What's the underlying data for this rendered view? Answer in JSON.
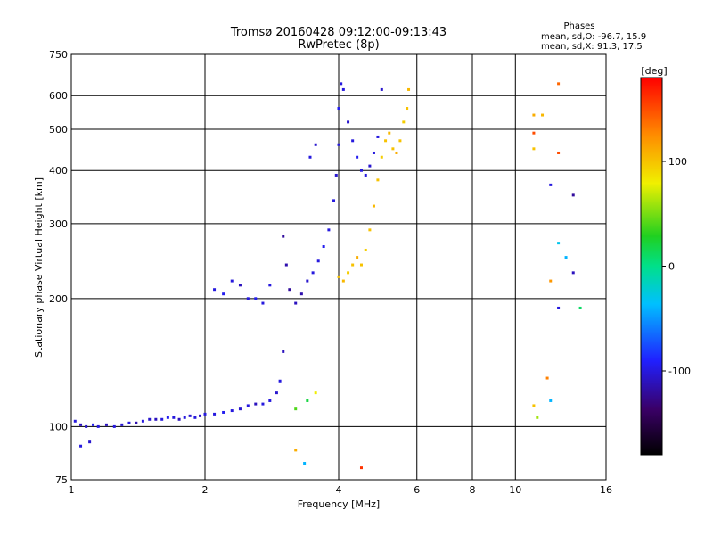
{
  "chart_data": {
    "type": "scatter",
    "title": "Tromsø 20160428 09:12:00-09:13:43",
    "subtitle": "RwPretec (8p)",
    "phase_box": {
      "heading": "Phases",
      "line_o": "mean, sd,O: -96.7, 15.9",
      "line_x": "mean, sd,X:  91.3, 17.5"
    },
    "xlabel": "Frequency [MHz]",
    "ylabel": "Stationary phase Virtual Height [km]",
    "x_scale": "log",
    "y_scale": "log",
    "xlim": [
      1,
      16
    ],
    "ylim": [
      75,
      750
    ],
    "x_ticks": [
      1,
      2,
      4,
      6,
      8,
      10,
      16
    ],
    "x_tick_labels": [
      "1",
      "2",
      "4",
      "6",
      "8",
      "10",
      "16"
    ],
    "y_ticks": [
      75,
      100,
      200,
      300,
      400,
      500,
      600,
      750
    ],
    "y_tick_labels": [
      "75",
      "100",
      "200",
      "300",
      "400",
      "500",
      "600",
      "750"
    ],
    "grid": true,
    "colorbar": {
      "label": "[deg]",
      "range": [
        -180,
        180
      ],
      "ticks": [
        100,
        0,
        -100
      ],
      "tick_labels": [
        "100",
        "0",
        "-100"
      ]
    },
    "series": [
      {
        "role": "low-trace",
        "points": [
          {
            "x": 1.02,
            "y": 103,
            "c": -100
          },
          {
            "x": 1.05,
            "y": 101,
            "c": -110
          },
          {
            "x": 1.08,
            "y": 100,
            "c": -105
          },
          {
            "x": 1.12,
            "y": 101,
            "c": -95
          },
          {
            "x": 1.15,
            "y": 100,
            "c": -100
          },
          {
            "x": 1.2,
            "y": 101,
            "c": -110
          },
          {
            "x": 1.25,
            "y": 100,
            "c": -100
          },
          {
            "x": 1.3,
            "y": 101,
            "c": -105
          },
          {
            "x": 1.35,
            "y": 102,
            "c": -100
          },
          {
            "x": 1.4,
            "y": 102,
            "c": -115
          },
          {
            "x": 1.45,
            "y": 103,
            "c": -100
          },
          {
            "x": 1.5,
            "y": 104,
            "c": -105
          },
          {
            "x": 1.55,
            "y": 104,
            "c": -110
          },
          {
            "x": 1.6,
            "y": 104,
            "c": -100
          },
          {
            "x": 1.65,
            "y": 105,
            "c": -95
          },
          {
            "x": 1.7,
            "y": 105,
            "c": -100
          },
          {
            "x": 1.75,
            "y": 104,
            "c": -110
          },
          {
            "x": 1.8,
            "y": 105,
            "c": -100
          },
          {
            "x": 1.85,
            "y": 106,
            "c": -105
          },
          {
            "x": 1.9,
            "y": 105,
            "c": -100
          },
          {
            "x": 1.95,
            "y": 106,
            "c": -110
          },
          {
            "x": 2.0,
            "y": 107,
            "c": -100
          },
          {
            "x": 2.1,
            "y": 107,
            "c": -100
          },
          {
            "x": 2.2,
            "y": 108,
            "c": -95
          },
          {
            "x": 2.3,
            "y": 109,
            "c": -100
          },
          {
            "x": 2.4,
            "y": 110,
            "c": -105
          },
          {
            "x": 2.5,
            "y": 112,
            "c": -100
          },
          {
            "x": 2.6,
            "y": 113,
            "c": -110
          },
          {
            "x": 2.7,
            "y": 113,
            "c": -100
          },
          {
            "x": 2.8,
            "y": 115,
            "c": -100
          },
          {
            "x": 2.9,
            "y": 120,
            "c": -105
          },
          {
            "x": 2.95,
            "y": 128,
            "c": -100
          },
          {
            "x": 3.0,
            "y": 150,
            "c": -110
          }
        ]
      },
      {
        "role": "o-trace",
        "points": [
          {
            "x": 2.1,
            "y": 210,
            "c": -100
          },
          {
            "x": 2.2,
            "y": 205,
            "c": -95
          },
          {
            "x": 2.3,
            "y": 220,
            "c": -100
          },
          {
            "x": 2.4,
            "y": 215,
            "c": -110
          },
          {
            "x": 2.5,
            "y": 200,
            "c": -100
          },
          {
            "x": 2.6,
            "y": 200,
            "c": -95
          },
          {
            "x": 2.7,
            "y": 195,
            "c": -100
          },
          {
            "x": 2.8,
            "y": 215,
            "c": -100
          },
          {
            "x": 3.0,
            "y": 280,
            "c": -120
          },
          {
            "x": 3.05,
            "y": 240,
            "c": -115
          },
          {
            "x": 3.1,
            "y": 210,
            "c": -120
          },
          {
            "x": 3.2,
            "y": 195,
            "c": -110
          },
          {
            "x": 3.3,
            "y": 205,
            "c": -115
          },
          {
            "x": 3.4,
            "y": 220,
            "c": -105
          },
          {
            "x": 3.5,
            "y": 230,
            "c": -100
          },
          {
            "x": 3.6,
            "y": 245,
            "c": -100
          },
          {
            "x": 3.7,
            "y": 265,
            "c": -95
          },
          {
            "x": 3.8,
            "y": 290,
            "c": -100
          },
          {
            "x": 3.9,
            "y": 340,
            "c": -100
          },
          {
            "x": 3.95,
            "y": 390,
            "c": -105
          },
          {
            "x": 4.0,
            "y": 460,
            "c": -100
          },
          {
            "x": 4.0,
            "y": 560,
            "c": -95
          },
          {
            "x": 4.05,
            "y": 640,
            "c": -100
          },
          {
            "x": 4.1,
            "y": 620,
            "c": -100
          },
          {
            "x": 4.2,
            "y": 520,
            "c": -105
          },
          {
            "x": 4.3,
            "y": 470,
            "c": -100
          },
          {
            "x": 4.4,
            "y": 430,
            "c": -95
          },
          {
            "x": 4.5,
            "y": 400,
            "c": -100
          },
          {
            "x": 4.6,
            "y": 390,
            "c": -100
          },
          {
            "x": 4.7,
            "y": 410,
            "c": -105
          },
          {
            "x": 4.8,
            "y": 440,
            "c": -100
          },
          {
            "x": 4.9,
            "y": 480,
            "c": -100
          },
          {
            "x": 5.0,
            "y": 620,
            "c": -105
          },
          {
            "x": 3.45,
            "y": 430,
            "c": -100
          },
          {
            "x": 3.55,
            "y": 460,
            "c": -105
          }
        ]
      },
      {
        "role": "x-trace",
        "points": [
          {
            "x": 4.0,
            "y": 225,
            "c": 100
          },
          {
            "x": 4.1,
            "y": 220,
            "c": 105
          },
          {
            "x": 4.2,
            "y": 230,
            "c": 95
          },
          {
            "x": 4.3,
            "y": 240,
            "c": 100
          },
          {
            "x": 4.4,
            "y": 250,
            "c": 110
          },
          {
            "x": 4.5,
            "y": 240,
            "c": 100
          },
          {
            "x": 4.6,
            "y": 260,
            "c": 95
          },
          {
            "x": 4.7,
            "y": 290,
            "c": 100
          },
          {
            "x": 4.8,
            "y": 330,
            "c": 105
          },
          {
            "x": 4.9,
            "y": 380,
            "c": 100
          },
          {
            "x": 5.0,
            "y": 430,
            "c": 95
          },
          {
            "x": 5.1,
            "y": 470,
            "c": 100
          },
          {
            "x": 5.2,
            "y": 490,
            "c": 105
          },
          {
            "x": 5.3,
            "y": 450,
            "c": 100
          },
          {
            "x": 5.4,
            "y": 440,
            "c": 110
          },
          {
            "x": 5.5,
            "y": 470,
            "c": 100
          },
          {
            "x": 5.6,
            "y": 520,
            "c": 95
          },
          {
            "x": 5.7,
            "y": 560,
            "c": 100
          },
          {
            "x": 5.75,
            "y": 620,
            "c": 105
          },
          {
            "x": 3.2,
            "y": 110,
            "c": 40
          },
          {
            "x": 3.4,
            "y": 115,
            "c": 20
          },
          {
            "x": 3.55,
            "y": 120,
            "c": 80
          }
        ]
      },
      {
        "role": "scattered",
        "points": [
          {
            "x": 11.0,
            "y": 540,
            "c": 110
          },
          {
            "x": 11.5,
            "y": 540,
            "c": 105
          },
          {
            "x": 12.5,
            "y": 640,
            "c": 140
          },
          {
            "x": 11.0,
            "y": 490,
            "c": 150
          },
          {
            "x": 11.0,
            "y": 450,
            "c": 100
          },
          {
            "x": 12.5,
            "y": 440,
            "c": 150
          },
          {
            "x": 12.0,
            "y": 370,
            "c": -100
          },
          {
            "x": 13.5,
            "y": 350,
            "c": -120
          },
          {
            "x": 12.5,
            "y": 270,
            "c": -30
          },
          {
            "x": 13.0,
            "y": 250,
            "c": -40
          },
          {
            "x": 12.0,
            "y": 220,
            "c": 120
          },
          {
            "x": 13.5,
            "y": 230,
            "c": -110
          },
          {
            "x": 12.5,
            "y": 190,
            "c": -100
          },
          {
            "x": 14.0,
            "y": 190,
            "c": 10
          },
          {
            "x": 11.8,
            "y": 130,
            "c": 130
          },
          {
            "x": 12.0,
            "y": 115,
            "c": -40
          },
          {
            "x": 11.0,
            "y": 112,
            "c": 100
          },
          {
            "x": 11.2,
            "y": 105,
            "c": 60
          },
          {
            "x": 3.2,
            "y": 88,
            "c": 110
          },
          {
            "x": 3.35,
            "y": 82,
            "c": -40
          },
          {
            "x": 4.5,
            "y": 80,
            "c": 160
          },
          {
            "x": 1.05,
            "y": 90,
            "c": -100
          },
          {
            "x": 1.1,
            "y": 92,
            "c": -105
          }
        ]
      }
    ]
  }
}
